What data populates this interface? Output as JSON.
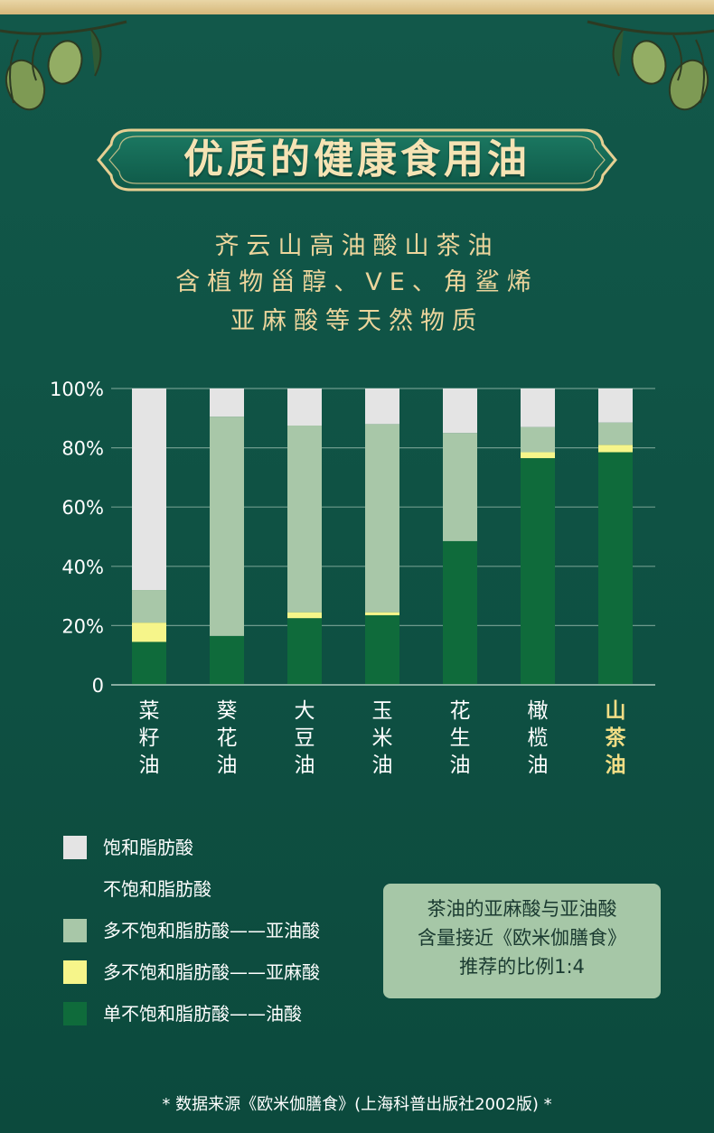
{
  "header": {
    "title": "优质的健康食用油",
    "subtitle_lines": [
      "齐云山高油酸山茶油",
      "含植物甾醇、VE、角鲨烯",
      "亚麻酸等天然物质"
    ]
  },
  "colors": {
    "saturated": "#e4e4e4",
    "linoleic": "#a8c7a8",
    "linolenic": "#f6f58a",
    "oleic": "#0f6b3b",
    "accent": "#f1dd85",
    "background": "#0f5244"
  },
  "chart_data": {
    "type": "bar",
    "stacked": true,
    "categories": [
      "菜籽油",
      "葵花油",
      "大豆油",
      "玉米油",
      "花生油",
      "橄榄油",
      "山茶油"
    ],
    "highlight_category": "山茶油",
    "y_ticks": [
      "0",
      "20%",
      "40%",
      "60%",
      "80%",
      "100%"
    ],
    "ylim": [
      0,
      100
    ],
    "grid": true,
    "series": [
      {
        "name": "单不饱和脂肪酸——油酸",
        "values": [
          14.5,
          16.5,
          22.5,
          23.5,
          48.5,
          76.5,
          78.5
        ]
      },
      {
        "name": "多不饱和脂肪酸——亚麻酸",
        "values": [
          6.5,
          0,
          2,
          1,
          0,
          2,
          2.5
        ]
      },
      {
        "name": "多不饱和脂肪酸——亚油酸",
        "values": [
          11,
          74,
          63,
          63.5,
          36.5,
          8.5,
          7.5
        ]
      },
      {
        "name": "饱和脂肪酸",
        "values": [
          68,
          9.5,
          12.5,
          12,
          15,
          13,
          11.5
        ]
      }
    ]
  },
  "legend": [
    {
      "label": "饱和脂肪酸",
      "swatch": "#e4e4e4"
    },
    {
      "label": "不饱和脂肪酸",
      "swatch": ""
    },
    {
      "label": "多不饱和脂肪酸——亚油酸",
      "swatch": "#a8c7a8"
    },
    {
      "label": "多不饱和脂肪酸——亚麻酸",
      "swatch": "#f6f58a"
    },
    {
      "label": "单不饱和脂肪酸——油酸",
      "swatch": "#0f6b3b"
    }
  ],
  "note": {
    "lines": [
      "茶油的亚麻酸与亚油酸",
      "含量接近《欧米伽膳食》",
      "推荐的比例1:4"
    ]
  },
  "footnote": "* 数据来源《欧米伽膳食》(上海科普出版社2002版) *"
}
